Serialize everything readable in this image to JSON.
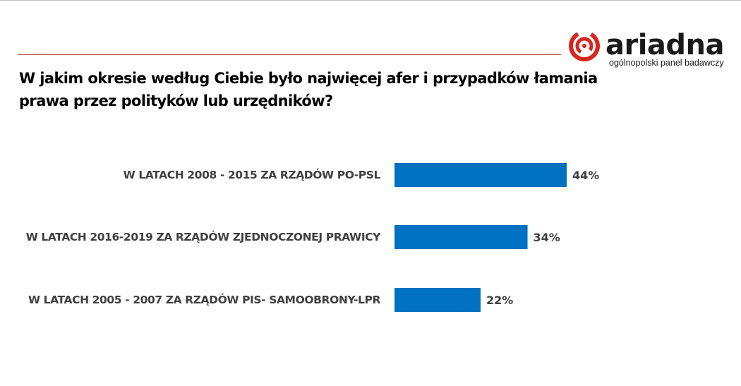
{
  "brand": {
    "name": "ariadna",
    "tagline": "ogólnopolski panel badawczy",
    "accent_color": "#d7261e"
  },
  "question": "W jakim okresie według Ciebie było najwięcej afer i przypadków łamania prawa przez polityków lub urzędników?",
  "chart_data": {
    "type": "bar",
    "orientation": "horizontal",
    "categories": [
      "W LATACH 2008 - 2015 ZA RZĄDÓW PO-PSL",
      "W LATACH 2016-2019 ZA RZĄDÓW ZJEDNOCZONEJ PRAWICY",
      "W LATACH 2005 - 2007 ZA RZĄDÓW PIS- SAMOOBRONY-LPR"
    ],
    "values": [
      44,
      34,
      22
    ],
    "value_labels": [
      "44%",
      "34%",
      "22%"
    ],
    "unit": "%",
    "bar_color": "#0070c0",
    "title": "",
    "xlabel": "",
    "ylabel": "",
    "grid": false,
    "legend": "none"
  }
}
